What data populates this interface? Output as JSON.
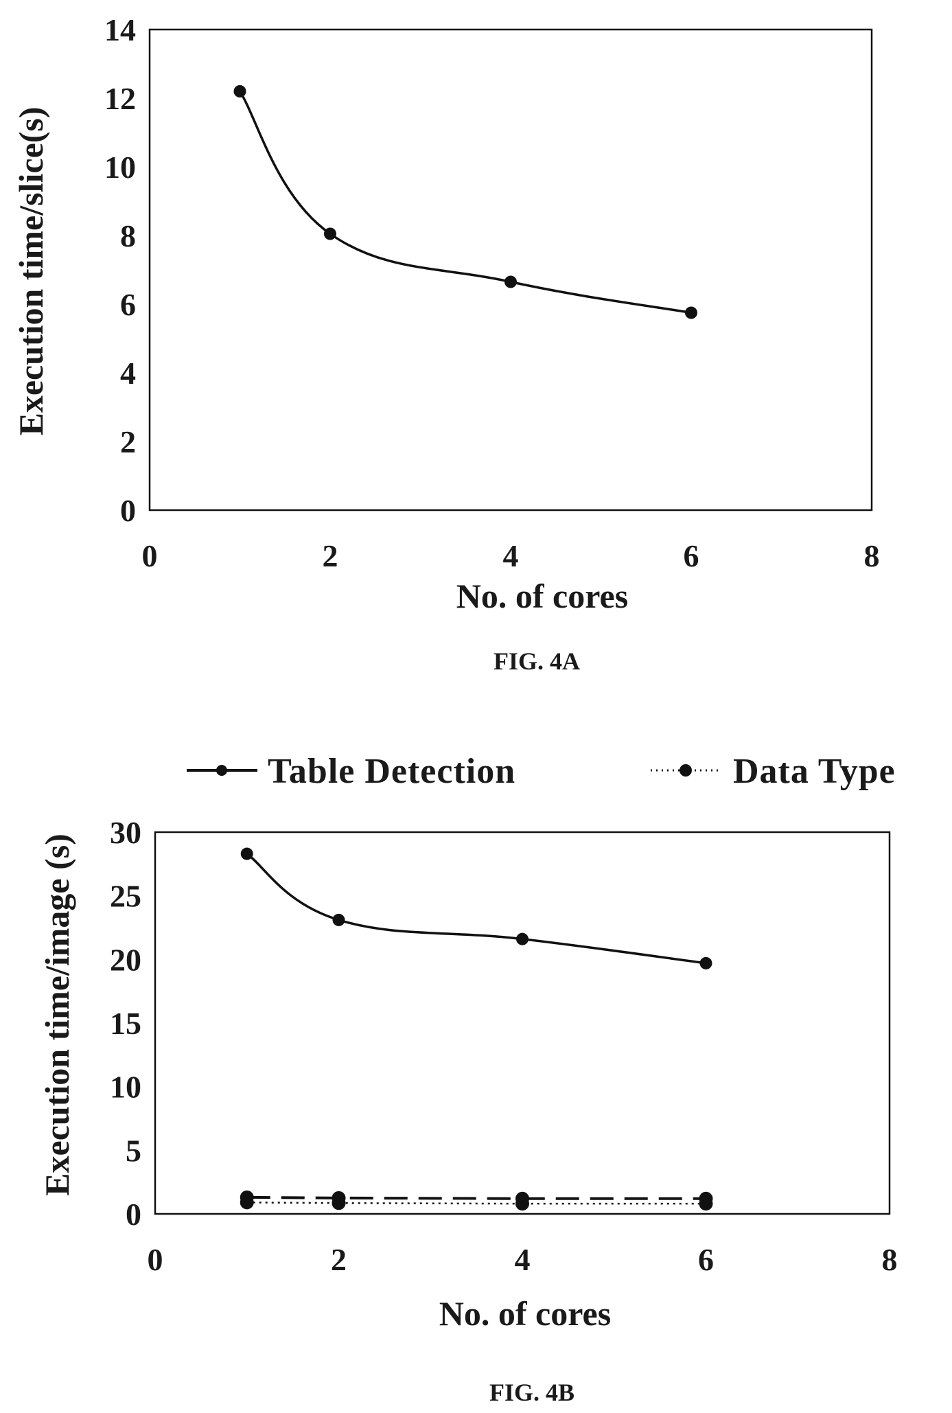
{
  "figures": [
    {
      "caption": "FIG. 4A"
    },
    {
      "caption": "FIG. 4B"
    }
  ],
  "chart_data": [
    {
      "type": "line",
      "title": "",
      "xlabel": "No. of cores",
      "ylabel": "Execution time/slice(s)",
      "xlim": [
        0,
        8
      ],
      "ylim": [
        0,
        14
      ],
      "xticks": [
        "0",
        "2",
        "4",
        "6",
        "8"
      ],
      "yticks": [
        "0",
        "2",
        "4",
        "6",
        "8",
        "10",
        "12",
        "14"
      ],
      "grid": false,
      "legend": "none",
      "series": [
        {
          "x": [
            1,
            2,
            4,
            6
          ],
          "values": [
            12.2,
            8.05,
            6.65,
            5.75
          ],
          "style": "solid"
        }
      ]
    },
    {
      "type": "line",
      "title": "",
      "xlabel": "No. of cores",
      "ylabel": "Execution time/image (s)",
      "xlim": [
        0,
        8
      ],
      "ylim": [
        0,
        30
      ],
      "xticks": [
        "0",
        "2",
        "4",
        "6",
        "8"
      ],
      "yticks": [
        "0",
        "5",
        "10",
        "15",
        "20",
        "25",
        "30"
      ],
      "grid": false,
      "legend": "top",
      "series": [
        {
          "name": "Table Detection",
          "x": [
            1,
            2,
            4,
            6
          ],
          "values": [
            28.3,
            23.1,
            21.6,
            19.7
          ],
          "style": "solid"
        },
        {
          "x": [
            1,
            2,
            4,
            6
          ],
          "values": [
            1.3,
            1.25,
            1.2,
            1.2
          ],
          "style": "dashed"
        },
        {
          "name": "Data Type",
          "x": [
            1,
            2,
            4,
            6
          ],
          "values": [
            0.9,
            0.85,
            0.8,
            0.8
          ],
          "style": "dotted"
        }
      ]
    }
  ]
}
